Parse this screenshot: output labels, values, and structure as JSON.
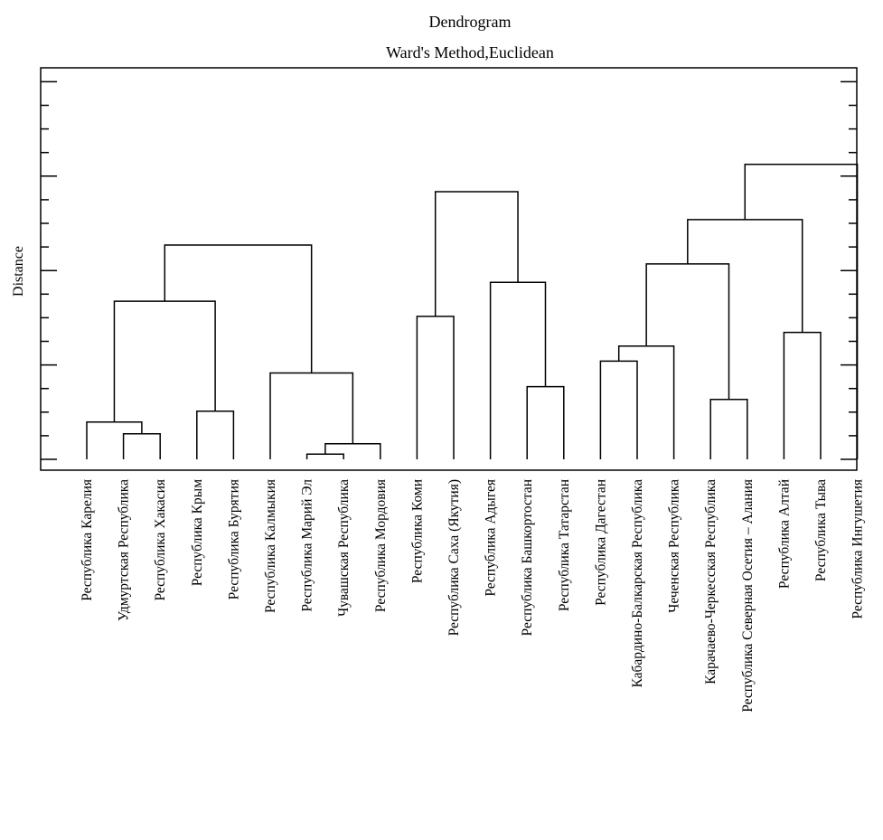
{
  "chart_data": {
    "type": "dendrogram",
    "title": "Dendrogram",
    "subtitle": "Ward's Method,Euclidean",
    "ylabel": "Distance",
    "xlabel": "",
    "ylim": [
      0,
      8
    ],
    "y_tick_labels_shown": false,
    "grid": false,
    "leaves": [
      "Республика Карелия",
      "Удмуртская Республика",
      "Республика Хакасия",
      "Республика Крым",
      "Республика Бурятия",
      "Республика Калмыкия",
      "Республика Марий Эл",
      "Чувашская Республика",
      "Республика Мордовия",
      "Республика Коми",
      "Республика Саха (Якутия)",
      "Республика Адыгея",
      "Республика Башкортостан",
      "Республика Татарстан",
      "Республика Дагестан",
      "Кабардино-Балкарская Республика",
      "Чеченская Республика",
      "Карачаево-Черкесская Республика",
      "Республика Северная Осетия – Алания",
      "Республика Алтай",
      "Республика Тыва",
      "Республика Ингушетия"
    ],
    "merges": [
      {
        "left": 6,
        "right": 7,
        "height": 0.11
      },
      {
        "left": "m0",
        "right": 8,
        "height": 0.33
      },
      {
        "left": 1,
        "right": 2,
        "height": 0.54
      },
      {
        "left": 0,
        "right": "m2",
        "height": 0.79
      },
      {
        "left": 3,
        "right": 4,
        "height": 1.02
      },
      {
        "left": 5,
        "right": "m1",
        "height": 1.83
      },
      {
        "left": "m3",
        "right": "m4",
        "height": 3.35
      },
      {
        "left": "m6",
        "right": "m5",
        "height": 4.54
      },
      {
        "left": 12,
        "right": 13,
        "height": 1.54
      },
      {
        "left": 11,
        "right": "m8",
        "height": 3.75
      },
      {
        "left": 9,
        "right": 10,
        "height": 3.03
      },
      {
        "left": "m10",
        "right": "m9",
        "height": 5.67
      },
      {
        "left": 14,
        "right": 15,
        "height": 2.08
      },
      {
        "left": "m12",
        "right": 16,
        "height": 2.4
      },
      {
        "left": 17,
        "right": 18,
        "height": 1.27
      },
      {
        "left": "m13",
        "right": "m14",
        "height": 4.14
      },
      {
        "left": 19,
        "right": 20,
        "height": 2.69
      },
      {
        "left": "m15",
        "right": "m16",
        "height": 5.08
      },
      {
        "left": "m17",
        "right": 21,
        "height": 6.25
      }
    ]
  }
}
